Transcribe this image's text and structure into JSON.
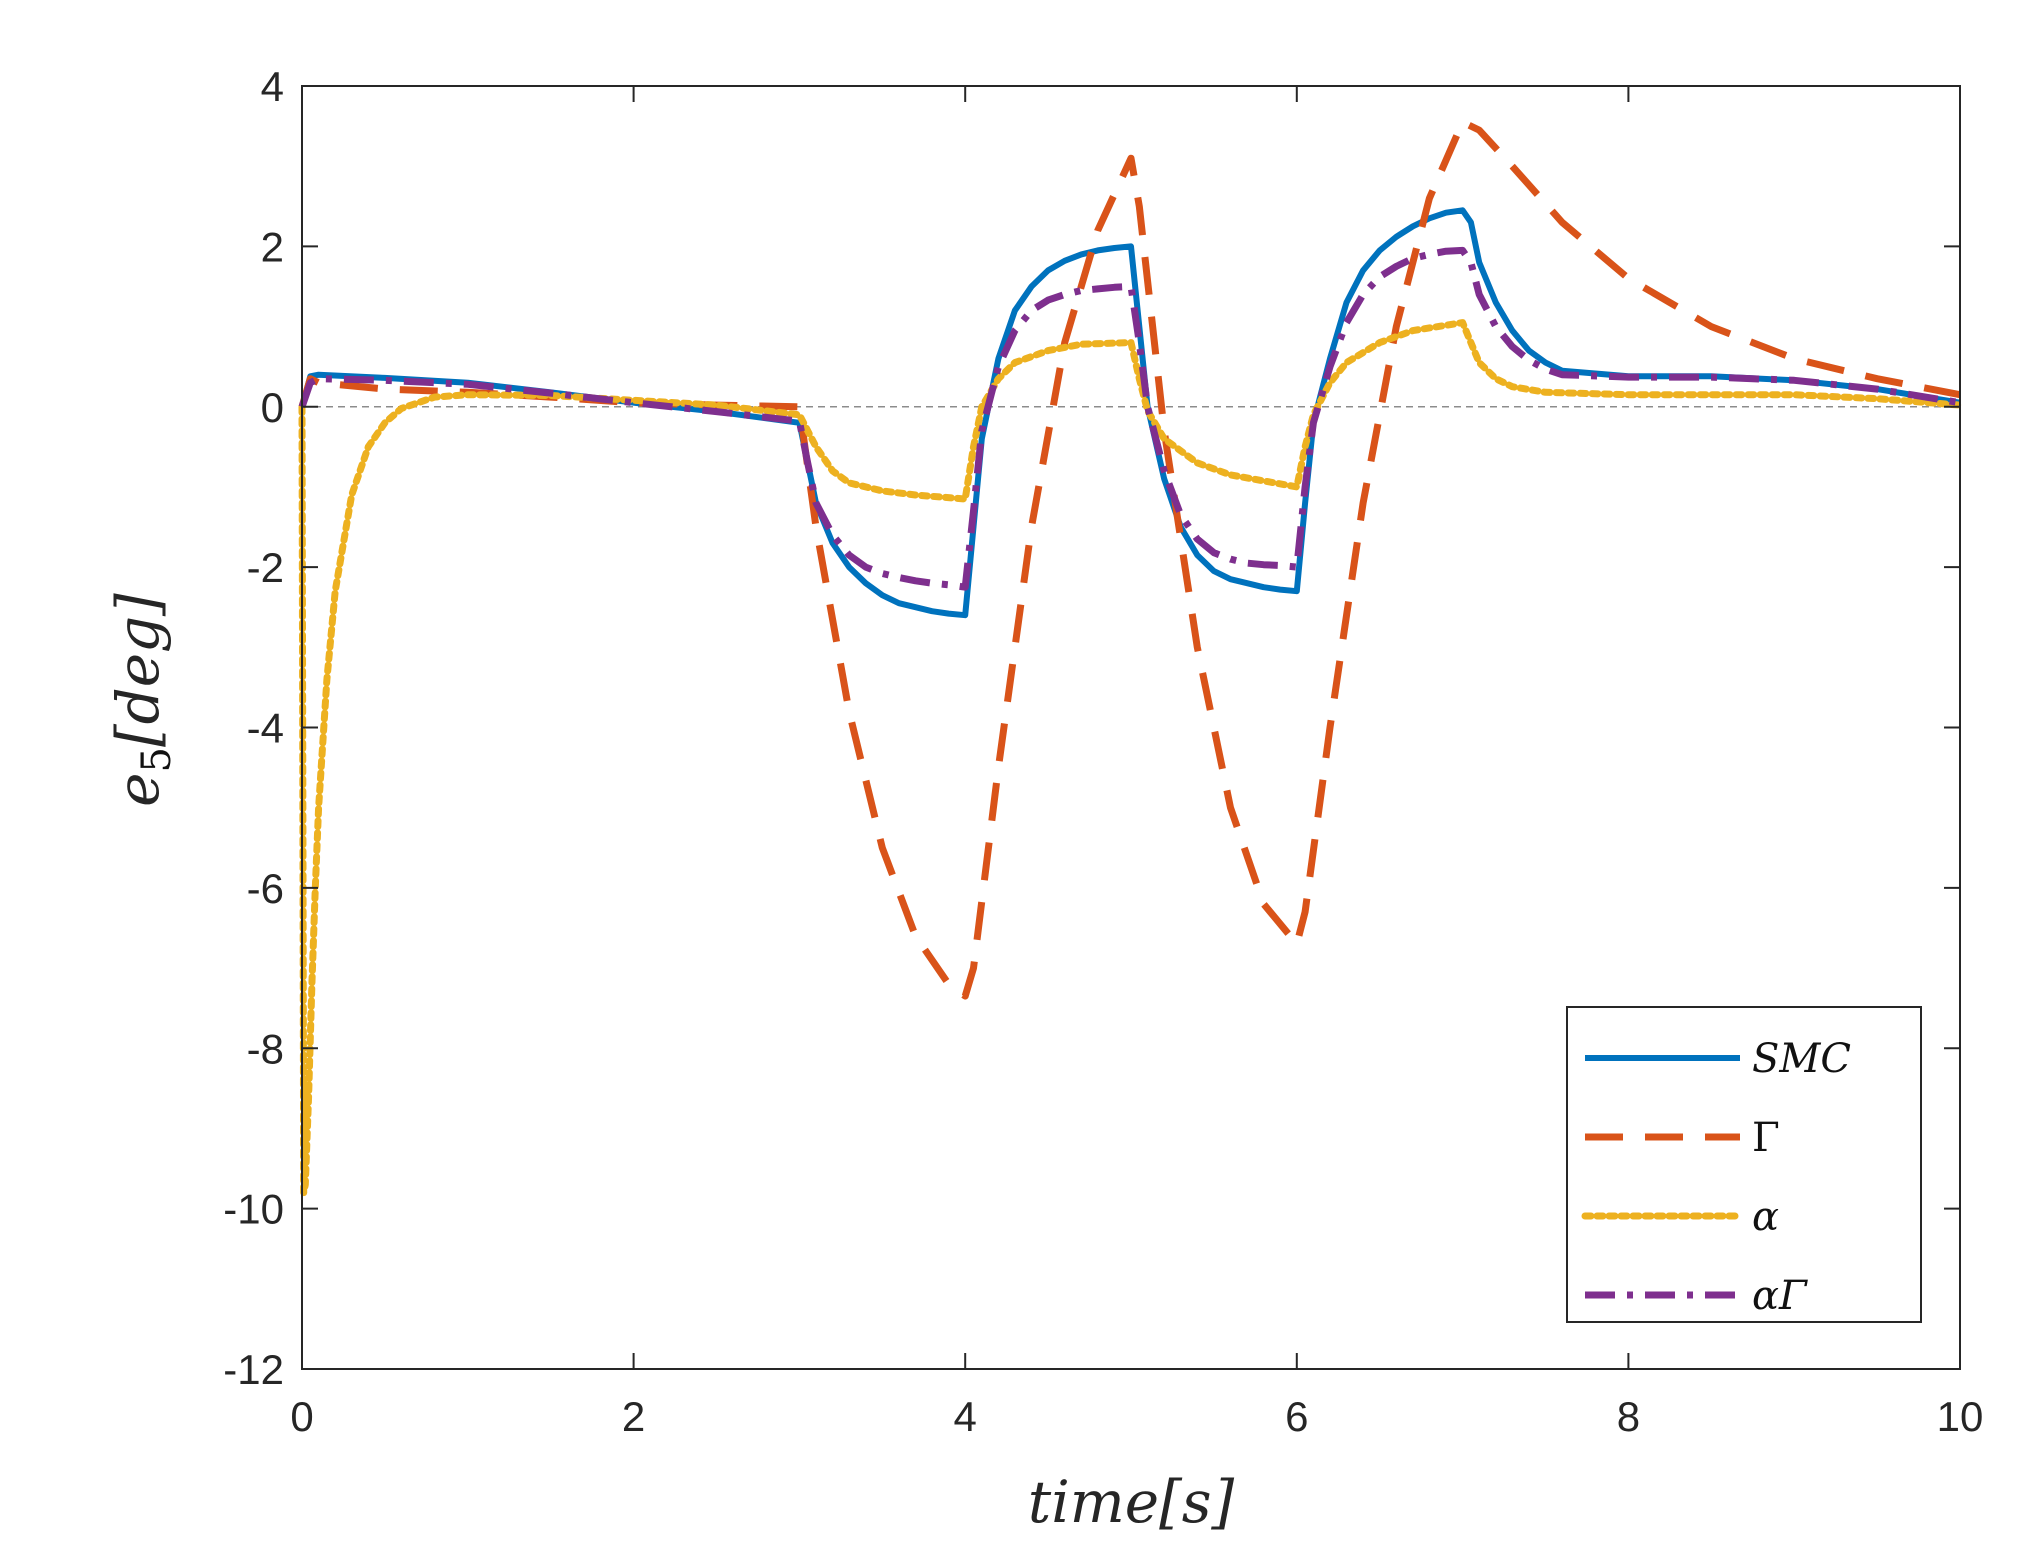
{
  "chart_data": {
    "type": "line",
    "title": "",
    "xlabel": "time[s]",
    "ylabel": "e5[deg]",
    "ylabel_main": "e",
    "ylabel_sub": "5",
    "ylabel_rest": "[deg]",
    "xlim": [
      0,
      10
    ],
    "ylim": [
      -12,
      4
    ],
    "xticks": [
      0,
      2,
      4,
      6,
      8,
      10
    ],
    "yticks": [
      -12,
      -10,
      -8,
      -6,
      -4,
      -2,
      0,
      2,
      4
    ],
    "xtick_labels": [
      "0",
      "2",
      "4",
      "6",
      "8",
      "10"
    ],
    "ytick_labels": [
      "-12",
      "-10",
      "-8",
      "-6",
      "-4",
      "-2",
      "0",
      "2",
      "4"
    ],
    "zero_reference_line": true,
    "grid": false,
    "legend_position": "bottom-right",
    "series": [
      {
        "name": "SMC",
        "color": "#0072BD",
        "style": "solid",
        "x": [
          0,
          0.05,
          0.1,
          0.5,
          1.0,
          1.5,
          2.0,
          2.5,
          3.0,
          3.05,
          3.1,
          3.2,
          3.3,
          3.4,
          3.5,
          3.6,
          3.7,
          3.8,
          3.9,
          4.0,
          4.05,
          4.1,
          4.2,
          4.3,
          4.4,
          4.5,
          4.6,
          4.7,
          4.8,
          4.9,
          5.0,
          5.05,
          5.1,
          5.2,
          5.3,
          5.4,
          5.5,
          5.6,
          5.7,
          5.8,
          5.9,
          6.0,
          6.05,
          6.1,
          6.2,
          6.3,
          6.4,
          6.5,
          6.6,
          6.7,
          6.8,
          6.9,
          7.0,
          7.05,
          7.1,
          7.2,
          7.3,
          7.4,
          7.5,
          7.6,
          8.0,
          8.5,
          9.0,
          9.5,
          10.0
        ],
        "y": [
          0,
          0.38,
          0.4,
          0.36,
          0.3,
          0.18,
          0.05,
          -0.06,
          -0.2,
          -0.7,
          -1.2,
          -1.7,
          -2.0,
          -2.2,
          -2.35,
          -2.45,
          -2.5,
          -2.55,
          -2.58,
          -2.6,
          -1.5,
          -0.4,
          0.6,
          1.2,
          1.5,
          1.7,
          1.82,
          1.9,
          1.95,
          1.98,
          2.0,
          1.0,
          0.0,
          -0.9,
          -1.5,
          -1.85,
          -2.05,
          -2.15,
          -2.2,
          -2.25,
          -2.28,
          -2.3,
          -1.2,
          -0.2,
          0.6,
          1.3,
          1.7,
          1.95,
          2.12,
          2.25,
          2.35,
          2.42,
          2.45,
          2.3,
          1.8,
          1.3,
          0.95,
          0.7,
          0.55,
          0.45,
          0.38,
          0.38,
          0.33,
          0.22,
          0.05
        ]
      },
      {
        "name": "Γ",
        "color": "#D95319",
        "style": "dashed",
        "x": [
          0,
          0.05,
          0.1,
          0.5,
          1.0,
          1.5,
          2.0,
          2.5,
          3.0,
          3.1,
          3.3,
          3.5,
          3.7,
          3.9,
          4.0,
          4.05,
          4.2,
          4.4,
          4.6,
          4.8,
          5.0,
          5.05,
          5.2,
          5.4,
          5.6,
          5.8,
          6.0,
          6.05,
          6.2,
          6.4,
          6.6,
          6.8,
          7.0,
          7.1,
          7.3,
          7.6,
          8.0,
          8.5,
          9.0,
          9.5,
          10.0
        ],
        "y": [
          0,
          0.35,
          0.3,
          0.22,
          0.18,
          0.12,
          0.05,
          0.02,
          0.0,
          -1.5,
          -3.8,
          -5.5,
          -6.6,
          -7.2,
          -7.35,
          -7.0,
          -4.5,
          -1.5,
          0.8,
          2.2,
          3.1,
          2.5,
          -0.3,
          -3.0,
          -5.0,
          -6.2,
          -6.7,
          -6.3,
          -4.0,
          -1.2,
          1.0,
          2.6,
          3.55,
          3.45,
          3.0,
          2.3,
          1.6,
          1.0,
          0.6,
          0.35,
          0.15
        ]
      },
      {
        "name": "α",
        "color": "#EDB120",
        "style": "dotted",
        "x": [
          0,
          0.01,
          0.02,
          0.04,
          0.06,
          0.08,
          0.1,
          0.15,
          0.2,
          0.3,
          0.4,
          0.5,
          0.6,
          0.8,
          1.0,
          1.5,
          2.0,
          2.5,
          3.0,
          3.1,
          3.2,
          3.3,
          3.5,
          3.7,
          4.0,
          4.05,
          4.1,
          4.2,
          4.3,
          4.5,
          4.7,
          5.0,
          5.05,
          5.1,
          5.2,
          5.4,
          5.6,
          6.0,
          6.05,
          6.1,
          6.2,
          6.3,
          6.5,
          6.7,
          7.0,
          7.05,
          7.1,
          7.2,
          7.3,
          7.5,
          8.0,
          9.0,
          9.5,
          10.0
        ],
        "y": [
          0,
          -9.8,
          -9.7,
          -8.6,
          -7.2,
          -6.0,
          -5.0,
          -3.4,
          -2.3,
          -1.1,
          -0.5,
          -0.2,
          -0.02,
          0.12,
          0.15,
          0.14,
          0.08,
          0.02,
          -0.1,
          -0.5,
          -0.8,
          -0.95,
          -1.05,
          -1.1,
          -1.15,
          -0.5,
          0.0,
          0.35,
          0.55,
          0.7,
          0.78,
          0.8,
          0.35,
          -0.05,
          -0.4,
          -0.7,
          -0.85,
          -1.0,
          -0.5,
          -0.1,
          0.3,
          0.55,
          0.8,
          0.95,
          1.05,
          0.8,
          0.55,
          0.35,
          0.25,
          0.18,
          0.15,
          0.15,
          0.1,
          0.02
        ]
      },
      {
        "name": "αΓ",
        "color": "#7E2F8E",
        "style": "dashdot",
        "x": [
          0,
          0.05,
          0.1,
          0.5,
          1.0,
          1.5,
          2.0,
          2.5,
          3.0,
          3.05,
          3.1,
          3.2,
          3.3,
          3.4,
          3.5,
          3.6,
          3.7,
          3.8,
          3.9,
          4.0,
          4.05,
          4.1,
          4.2,
          4.3,
          4.4,
          4.5,
          4.6,
          4.7,
          4.8,
          4.9,
          5.0,
          5.05,
          5.1,
          5.2,
          5.3,
          5.4,
          5.5,
          5.6,
          5.7,
          5.8,
          5.9,
          6.0,
          6.05,
          6.1,
          6.2,
          6.3,
          6.4,
          6.5,
          6.6,
          6.7,
          6.8,
          6.9,
          7.0,
          7.05,
          7.1,
          7.2,
          7.3,
          7.4,
          7.5,
          7.6,
          8.0,
          8.5,
          9.0,
          9.5,
          10.0
        ],
        "y": [
          0,
          0.3,
          0.35,
          0.33,
          0.28,
          0.17,
          0.05,
          -0.06,
          -0.18,
          -0.7,
          -1.2,
          -1.6,
          -1.85,
          -2.0,
          -2.08,
          -2.13,
          -2.17,
          -2.2,
          -2.22,
          -2.25,
          -1.3,
          -0.3,
          0.5,
          0.95,
          1.2,
          1.33,
          1.4,
          1.45,
          1.47,
          1.49,
          1.5,
          0.8,
          0.0,
          -0.8,
          -1.35,
          -1.65,
          -1.82,
          -1.9,
          -1.95,
          -1.97,
          -1.98,
          -2.0,
          -1.0,
          -0.2,
          0.5,
          1.05,
          1.4,
          1.62,
          1.75,
          1.85,
          1.9,
          1.94,
          1.95,
          1.8,
          1.4,
          1.0,
          0.75,
          0.58,
          0.47,
          0.4,
          0.37,
          0.37,
          0.33,
          0.22,
          0.05
        ]
      }
    ],
    "legend": [
      {
        "label": "SMC"
      },
      {
        "label": "Γ"
      },
      {
        "label": "α"
      },
      {
        "label": "αΓ"
      }
    ]
  }
}
